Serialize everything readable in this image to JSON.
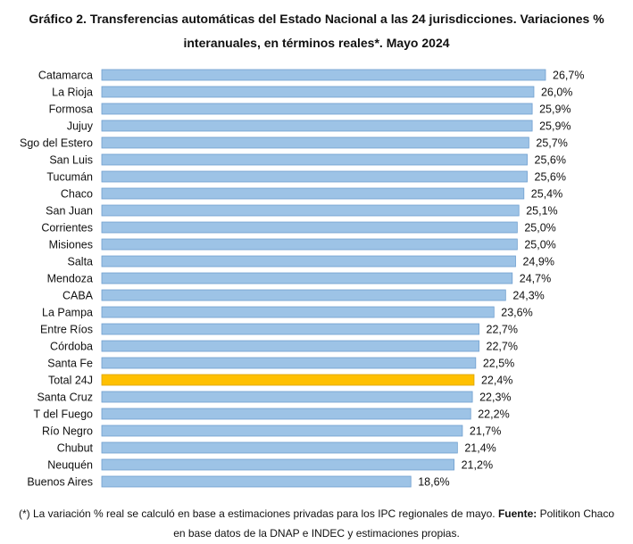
{
  "header": {
    "title_line1": "Gráfico 2. Transferencias automáticas del Estado Nacional a las 24 jurisdicciones. Variaciones %",
    "title_line2": "interanuales, en términos reales*. Mayo 2024"
  },
  "chart_data": {
    "type": "bar",
    "orientation": "horizontal",
    "categories": [
      "Catamarca",
      "La Rioja",
      "Formosa",
      "Jujuy",
      "Sgo del Estero",
      "San Luis",
      "Tucumán",
      "Chaco",
      "San Juan",
      "Corrientes",
      "Misiones",
      "Salta",
      "Mendoza",
      "CABA",
      "La Pampa",
      "Entre Ríos",
      "Córdoba",
      "Santa Fe",
      "Total 24J",
      "Santa Cruz",
      "T del Fuego",
      "Río Negro",
      "Chubut",
      "Neuquén",
      "Buenos Aires"
    ],
    "values": [
      26.7,
      26.0,
      25.9,
      25.9,
      25.7,
      25.6,
      25.6,
      25.4,
      25.1,
      25.0,
      25.0,
      24.9,
      24.7,
      24.3,
      23.6,
      22.7,
      22.7,
      22.5,
      22.4,
      22.3,
      22.2,
      21.7,
      21.4,
      21.2,
      18.6
    ],
    "value_labels": [
      "26,7%",
      "26,0%",
      "25,9%",
      "25,9%",
      "25,7%",
      "25,6%",
      "25,6%",
      "25,4%",
      "25,1%",
      "25,0%",
      "25,0%",
      "24,9%",
      "24,7%",
      "24,3%",
      "23,6%",
      "22,7%",
      "22,7%",
      "22,5%",
      "22,4%",
      "22,3%",
      "22,2%",
      "21,7%",
      "21,4%",
      "21,2%",
      "18,6%"
    ],
    "highlight_category": "Total 24J",
    "xlim": [
      0,
      26.7
    ],
    "grid": false,
    "colors": {
      "bar": "#9dc3e6",
      "bar_border": "#6f9fcf",
      "highlight": "#ffc000",
      "highlight_border": "#d9a300"
    }
  },
  "footnote": {
    "note": "(*) La variación % real se calculó en base a estimaciones privadas para los IPC regionales de mayo.",
    "source_label": "Fuente:",
    "source_text": "Politikon Chaco",
    "line2": "en base datos de la DNAP e INDEC y estimaciones propias."
  }
}
